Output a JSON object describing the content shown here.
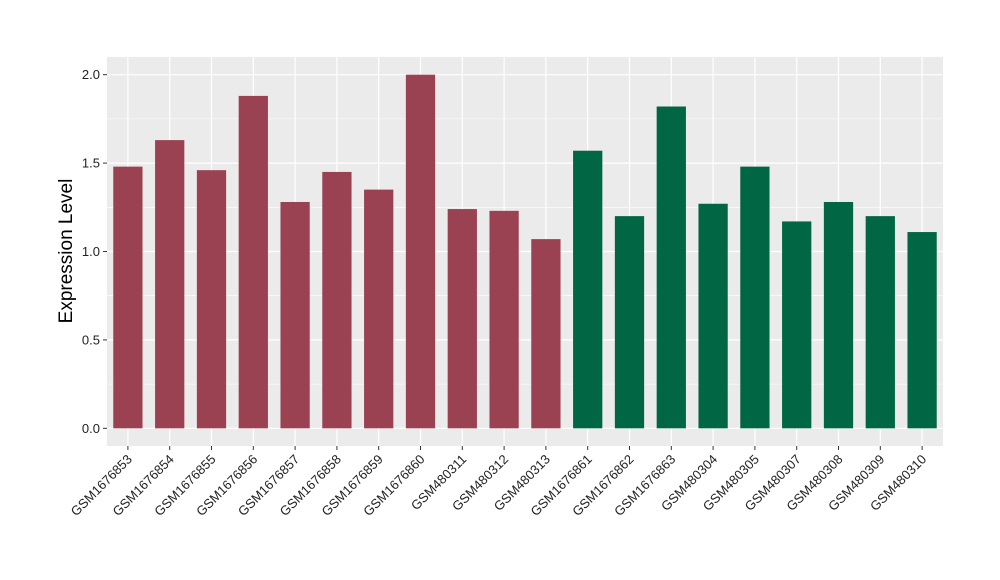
{
  "chart_data": {
    "type": "bar",
    "ylabel": "Expression Level",
    "xlabel": "",
    "ylim": [
      -0.1,
      2.1
    ],
    "yticks": [
      0.0,
      0.5,
      1.0,
      1.5,
      2.0
    ],
    "ytick_labels": [
      "0.0",
      "0.5",
      "1.0",
      "1.5",
      "2.0"
    ],
    "grid": true,
    "categories": [
      "GSM1676853",
      "GSM1676854",
      "GSM1676855",
      "GSM1676856",
      "GSM1676857",
      "GSM1676858",
      "GSM1676859",
      "GSM1676860",
      "GSM480311",
      "GSM480312",
      "GSM480313",
      "GSM1676861",
      "GSM1676862",
      "GSM1676863",
      "GSM480304",
      "GSM480305",
      "GSM480307",
      "GSM480308",
      "GSM480309",
      "GSM480310"
    ],
    "values": [
      1.48,
      1.63,
      1.46,
      1.88,
      1.28,
      1.45,
      1.35,
      2.0,
      1.24,
      1.23,
      1.07,
      1.57,
      1.2,
      1.82,
      1.27,
      1.48,
      1.17,
      1.28,
      1.2,
      1.11
    ],
    "groups": [
      0,
      0,
      0,
      0,
      0,
      0,
      0,
      0,
      0,
      0,
      0,
      1,
      1,
      1,
      1,
      1,
      1,
      1,
      1,
      1
    ],
    "colors": [
      "#9a4251",
      "#016644"
    ],
    "panel_background": "#ebebeb",
    "grid_color": "#ffffff"
  }
}
